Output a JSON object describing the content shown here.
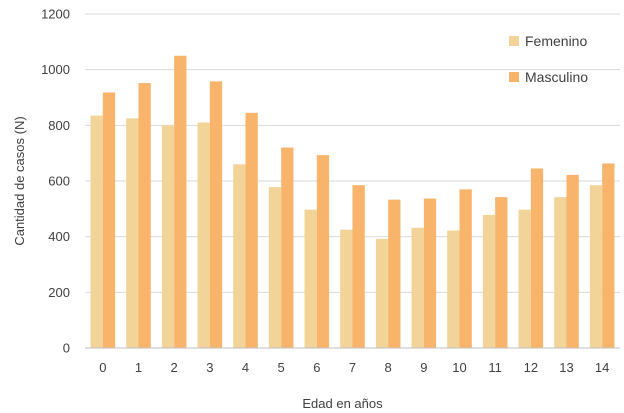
{
  "chart_data": {
    "type": "bar",
    "xlabel": "Edad en años",
    "ylabel": "Cantidad de casos (N)",
    "ylim": [
      0,
      1200
    ],
    "yticks": [
      0,
      200,
      400,
      600,
      800,
      1000,
      1200
    ],
    "grid": true,
    "legend_position": "top-right",
    "categories": [
      "0",
      "1",
      "2",
      "3",
      "4",
      "5",
      "6",
      "7",
      "8",
      "9",
      "10",
      "11",
      "12",
      "13",
      "14"
    ],
    "series": [
      {
        "name": "Femenino",
        "color": "#F2D398",
        "values": [
          835,
          825,
          800,
          810,
          660,
          578,
          497,
          425,
          392,
          432,
          422,
          478,
          497,
          542,
          585
        ]
      },
      {
        "name": "Masculino",
        "color": "#F8B46A",
        "values": [
          918,
          952,
          1050,
          958,
          845,
          720,
          693,
          585,
          533,
          537,
          570,
          542,
          645,
          622,
          663
        ]
      }
    ]
  }
}
